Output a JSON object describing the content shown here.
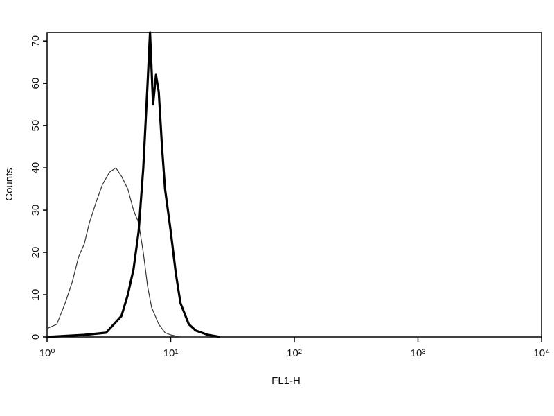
{
  "chart_data": {
    "type": "line",
    "x_label": "FL1-H",
    "y_label": "Counts",
    "xscale": "log",
    "xlim": [
      1,
      10000
    ],
    "xticks": [
      {
        "value": 1,
        "label": "10⁰"
      },
      {
        "value": 10,
        "label": "10¹"
      },
      {
        "value": 100,
        "label": "10²"
      },
      {
        "value": 1000,
        "label": "10³"
      },
      {
        "value": 10000,
        "label": "10⁴"
      }
    ],
    "ylim": [
      0,
      72
    ],
    "yticks": [
      0,
      10,
      20,
      30,
      40,
      50,
      60,
      70
    ],
    "series": [
      {
        "color": "#333333",
        "x": [
          1,
          1.2,
          1.4,
          1.6,
          1.8,
          2,
          2.2,
          2.5,
          2.8,
          3.2,
          3.6,
          4,
          4.5,
          5,
          5.5,
          6,
          6.5,
          7,
          8,
          9,
          10,
          12,
          20
        ],
        "values": [
          2,
          3,
          8,
          13,
          19,
          22,
          27,
          32,
          36,
          39,
          40,
          38,
          35,
          30,
          27,
          20,
          12,
          7,
          3,
          1,
          0.5,
          0,
          0
        ]
      },
      {
        "color": "#000000",
        "x": [
          1,
          2,
          3,
          4,
          4.5,
          5,
          5.5,
          6,
          6.5,
          6.8,
          7.2,
          7.6,
          8,
          8.5,
          9,
          10,
          11,
          12,
          14,
          16,
          20,
          25
        ],
        "values": [
          0,
          0.5,
          1,
          5,
          10,
          16,
          25,
          40,
          60,
          72,
          55,
          62,
          58,
          45,
          35,
          25,
          15,
          8,
          3,
          1.5,
          0.5,
          0
        ]
      }
    ]
  }
}
